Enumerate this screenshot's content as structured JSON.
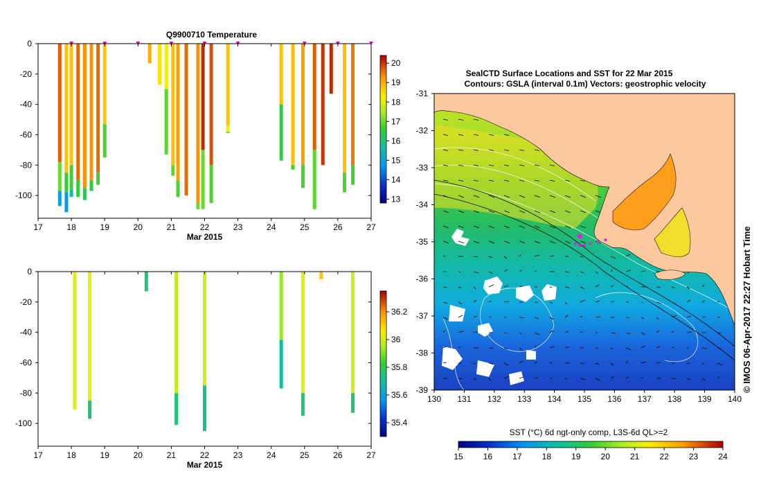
{
  "chart_data": [
    {
      "type": "heatmap",
      "title": "Q9900710  Temperature",
      "xlabel": "Mar 2015",
      "ylabel": "",
      "xlim": [
        17,
        27
      ],
      "ylim": [
        -115,
        0
      ],
      "x_ticks": [
        "17",
        "18",
        "19",
        "20",
        "21",
        "22",
        "23",
        "24",
        "25",
        "26",
        "27"
      ],
      "y_ticks": [
        "0",
        "-20",
        "-40",
        "-60",
        "-80",
        "-100"
      ],
      "colorbar": {
        "ticks": [
          "13",
          "14",
          "15",
          "16",
          "17",
          "18",
          "19",
          "20"
        ],
        "range": [
          12.8,
          20.4
        ]
      },
      "surface_markers": [
        18.0,
        19.0,
        20.0,
        21.0,
        22.0,
        23.0,
        25.0,
        26.0,
        27.0
      ],
      "profiles": [
        {
          "x": 17.65,
          "depth": 107,
          "segments": [
            [
              0,
              78,
              19.7
            ],
            [
              78,
              97,
              17.0
            ],
            [
              97,
              107,
              15.0
            ]
          ]
        },
        {
          "x": 17.85,
          "depth": 111,
          "segments": [
            [
              0,
              85,
              18.8
            ],
            [
              85,
              98,
              16.6
            ],
            [
              98,
              111,
              14.8
            ]
          ]
        },
        {
          "x": 18.0,
          "depth": 101,
          "segments": [
            [
              0,
              80,
              18.8
            ],
            [
              80,
              96,
              16.7
            ],
            [
              96,
              101,
              15.6
            ]
          ]
        },
        {
          "x": 18.2,
          "depth": 101,
          "segments": [
            [
              0,
              90,
              19.6
            ],
            [
              90,
              101,
              16.6
            ]
          ]
        },
        {
          "x": 18.4,
          "depth": 103,
          "segments": [
            [
              0,
              95,
              19.3
            ],
            [
              95,
              103,
              16.3
            ]
          ]
        },
        {
          "x": 18.6,
          "depth": 97,
          "segments": [
            [
              0,
              90,
              19.3
            ],
            [
              90,
              97,
              16.5
            ]
          ]
        },
        {
          "x": 18.8,
          "depth": 93,
          "segments": [
            [
              0,
              85,
              19.6
            ],
            [
              85,
              93,
              16.7
            ]
          ]
        },
        {
          "x": 19.0,
          "depth": 75,
          "segments": [
            [
              0,
              53,
              18.7
            ],
            [
              53,
              75,
              16.8
            ]
          ]
        },
        {
          "x": 20.35,
          "depth": 13,
          "segments": [
            [
              0,
              13,
              19.0
            ]
          ]
        },
        {
          "x": 20.65,
          "depth": 27,
          "segments": [
            [
              0,
              27,
              18.4
            ]
          ]
        },
        {
          "x": 20.85,
          "depth": 73,
          "segments": [
            [
              0,
              30,
              18.2
            ],
            [
              30,
              73,
              16.9
            ]
          ]
        },
        {
          "x": 21.05,
          "depth": 87,
          "segments": [
            [
              0,
              80,
              18.8
            ],
            [
              80,
              87,
              16.9
            ]
          ]
        },
        {
          "x": 21.2,
          "depth": 101,
          "segments": [
            [
              0,
              90,
              19.2
            ],
            [
              90,
              101,
              16.8
            ]
          ]
        },
        {
          "x": 21.45,
          "depth": 101,
          "segments": [
            [
              0,
              100,
              19.6
            ]
          ]
        },
        {
          "x": 21.8,
          "depth": 109,
          "segments": [
            [
              0,
              105,
              19.3
            ],
            [
              105,
              109,
              17.0
            ]
          ]
        },
        {
          "x": 21.95,
          "depth": 109,
          "segments": [
            [
              0,
              70,
              20.1
            ],
            [
              70,
              109,
              17.0
            ]
          ]
        },
        {
          "x": 22.2,
          "depth": 105,
          "segments": [
            [
              0,
              80,
              19.8
            ],
            [
              80,
              105,
              16.8
            ]
          ]
        },
        {
          "x": 22.7,
          "depth": 59,
          "segments": [
            [
              0,
              54,
              18.8
            ],
            [
              54,
              58,
              18.2
            ],
            [
              58,
              59,
              17.0
            ]
          ]
        },
        {
          "x": 24.3,
          "depth": 77,
          "segments": [
            [
              0,
              40,
              18.8
            ],
            [
              40,
              77,
              16.5
            ]
          ]
        },
        {
          "x": 24.65,
          "depth": 83,
          "segments": [
            [
              0,
              80,
              18.8
            ],
            [
              80,
              83,
              16.7
            ]
          ]
        },
        {
          "x": 24.95,
          "depth": 95,
          "segments": [
            [
              0,
              80,
              19.2
            ],
            [
              80,
              95,
              16.7
            ]
          ]
        },
        {
          "x": 25.3,
          "depth": 109,
          "segments": [
            [
              0,
              70,
              19.7
            ],
            [
              70,
              109,
              16.9
            ]
          ]
        },
        {
          "x": 25.55,
          "depth": 80,
          "segments": [
            [
              0,
              80,
              20.0
            ]
          ]
        },
        {
          "x": 25.8,
          "depth": 33,
          "segments": [
            [
              0,
              33,
              20.1
            ]
          ]
        },
        {
          "x": 26.2,
          "depth": 98,
          "segments": [
            [
              0,
              85,
              18.8
            ],
            [
              85,
              98,
              16.8
            ]
          ]
        },
        {
          "x": 26.45,
          "depth": 93,
          "segments": [
            [
              0,
              80,
              19.5
            ],
            [
              80,
              93,
              16.7
            ]
          ]
        }
      ]
    },
    {
      "type": "heatmap",
      "title": "",
      "xlabel": "Mar 2015",
      "ylabel": "",
      "xlim": [
        17,
        27
      ],
      "ylim": [
        -115,
        0
      ],
      "x_ticks": [
        "17",
        "18",
        "19",
        "20",
        "21",
        "22",
        "23",
        "24",
        "25",
        "26",
        "27"
      ],
      "y_ticks": [
        "0",
        "-20",
        "-40",
        "-60",
        "-80",
        "-100"
      ],
      "colorbar": {
        "ticks": [
          "35.4",
          "35.6",
          "35.8",
          "36",
          "36.2"
        ],
        "range": [
          35.3,
          36.35
        ]
      },
      "profiles": [
        {
          "x": 18.1,
          "depth": 91,
          "segments": [
            [
              0,
              91,
              36.02
            ]
          ]
        },
        {
          "x": 18.55,
          "depth": 97,
          "segments": [
            [
              0,
              85,
              36.02
            ],
            [
              85,
              97,
              35.75
            ]
          ]
        },
        {
          "x": 20.25,
          "depth": 13,
          "segments": [
            [
              0,
              13,
              35.75
            ]
          ]
        },
        {
          "x": 21.15,
          "depth": 101,
          "segments": [
            [
              0,
              80,
              35.98
            ],
            [
              80,
              101,
              35.75
            ]
          ]
        },
        {
          "x": 22.0,
          "depth": 105,
          "segments": [
            [
              0,
              75,
              36.0
            ],
            [
              75,
              105,
              35.72
            ]
          ]
        },
        {
          "x": 24.3,
          "depth": 77,
          "segments": [
            [
              0,
              45,
              35.93
            ],
            [
              45,
              77,
              35.7
            ]
          ]
        },
        {
          "x": 24.95,
          "depth": 95,
          "segments": [
            [
              0,
              80,
              36.02
            ],
            [
              80,
              95,
              35.75
            ]
          ]
        },
        {
          "x": 25.5,
          "depth": 5,
          "segments": [
            [
              0,
              5,
              36.12
            ]
          ]
        },
        {
          "x": 26.45,
          "depth": 93,
          "segments": [
            [
              0,
              80,
              36.0
            ],
            [
              80,
              93,
              35.75
            ]
          ]
        }
      ]
    },
    {
      "type": "heatmap",
      "title": "SealCTD Surface Locations and SST for 22 Mar 2015",
      "subtitle": "Contours: GSLA (interval 0.1m) Vectors: geostrophic velocity",
      "xlabel": "",
      "ylabel": "",
      "xlim": [
        130,
        140
      ],
      "ylim": [
        -39,
        -31
      ],
      "x_ticks": [
        "130",
        "131",
        "132",
        "133",
        "134",
        "135",
        "136",
        "137",
        "138",
        "139",
        "140"
      ],
      "y_ticks": [
        "-31",
        "-32",
        "-33",
        "-34",
        "-35",
        "-36",
        "-37",
        "-38",
        "-39"
      ],
      "colorbar_label": "SST (°C) 6d ngt-only comp, L3S-6d QL>=2",
      "colorbar": {
        "ticks": [
          "15",
          "16",
          "17",
          "18",
          "19",
          "20",
          "21",
          "22",
          "23",
          "24"
        ],
        "range": [
          15,
          24
        ]
      },
      "land_color": "#fcc99e",
      "seal_locations": [
        [
          134.7,
          -35.05
        ],
        [
          134.85,
          -35.1
        ],
        [
          135.0,
          -35.1
        ],
        [
          135.2,
          -35.05
        ],
        [
          135.45,
          -35.0
        ],
        [
          135.7,
          -34.95
        ],
        [
          134.85,
          -34.85
        ]
      ],
      "side_text": "© IMOS 06-Apr-2017 22:27 Hobart Time"
    }
  ]
}
